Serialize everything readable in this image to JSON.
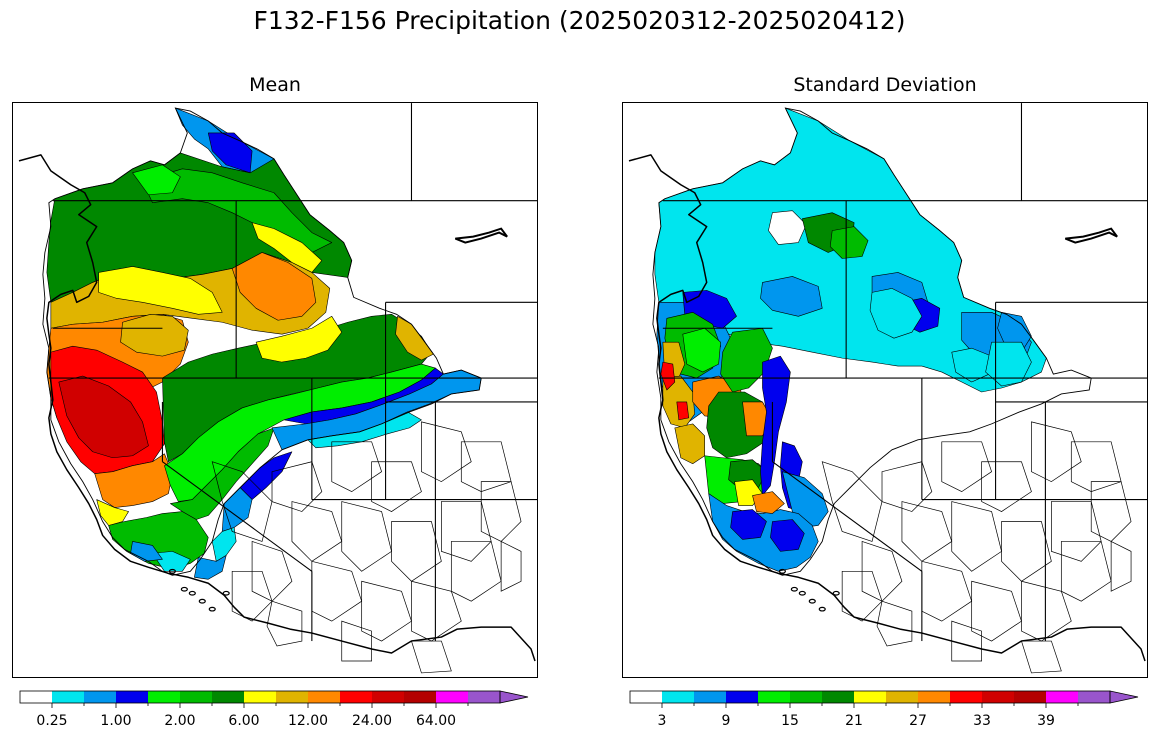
{
  "figure": {
    "title": "F132-F156 Precipitation (2025020312-2025020412)"
  },
  "panels": [
    {
      "id": "mean",
      "title": "Mean",
      "colorbar": {
        "colors": [
          "#ffffff",
          "#00e5ee",
          "#0096ee",
          "#0000ee",
          "#00ee00",
          "#00bb00",
          "#008800",
          "#ffff00",
          "#e0b400",
          "#ff8800",
          "#ff0000",
          "#d00000",
          "#b40000",
          "#ff00ff",
          "#9955cc"
        ],
        "tick_labels": [
          "0.25",
          "1.00",
          "2.00",
          "6.00",
          "12.00",
          "24.00",
          "64.00"
        ],
        "extend": "max"
      }
    },
    {
      "id": "stddev",
      "title": "Standard Deviation",
      "colorbar": {
        "colors": [
          "#ffffff",
          "#00e5ee",
          "#0096ee",
          "#0000ee",
          "#00ee00",
          "#00bb00",
          "#008800",
          "#ffff00",
          "#e0b400",
          "#ff8800",
          "#ff0000",
          "#d00000",
          "#b40000",
          "#ff00ff",
          "#9955cc"
        ],
        "tick_labels": [
          "3",
          "9",
          "15",
          "21",
          "27",
          "33",
          "39"
        ],
        "extend": "max"
      }
    }
  ]
}
